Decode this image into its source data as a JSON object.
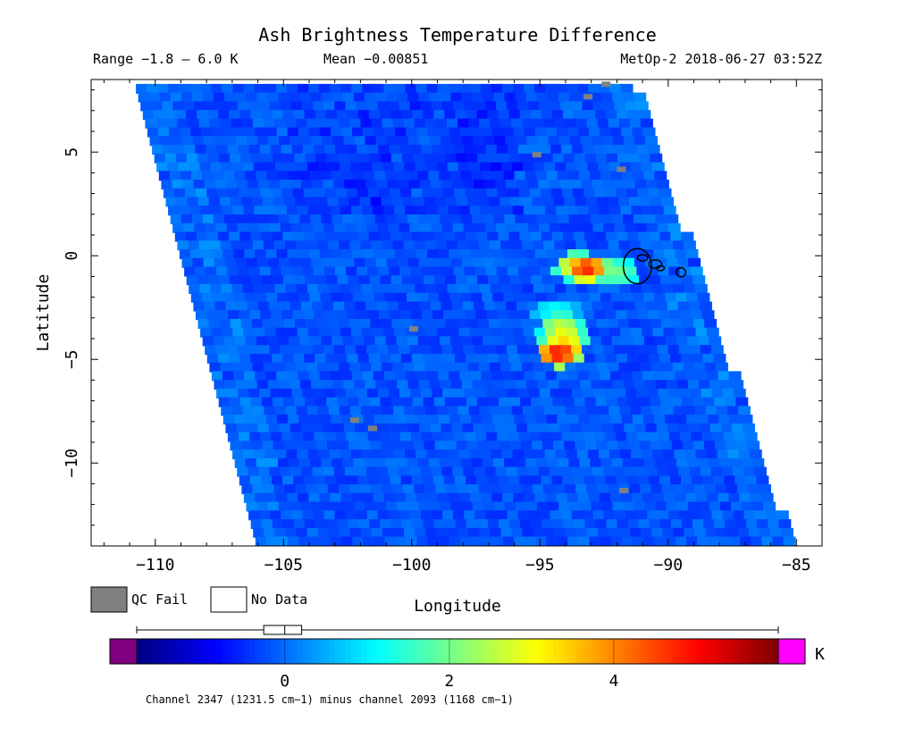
{
  "chart_data": {
    "type": "heatmap",
    "title": "Ash Brightness Temperature Difference",
    "header": {
      "range": "Range −1.8 – 6.0 K",
      "mean": "Mean −0.00851",
      "source": "MetOp-2 2018-06-27 03:52Z"
    },
    "xlabel": "Longitude",
    "ylabel": "Latitude",
    "xlim": [
      -112.5,
      -84.0
    ],
    "ylim": [
      -14.0,
      8.5
    ],
    "x_ticks": [
      -110,
      -105,
      -100,
      -95,
      -90,
      -85
    ],
    "x_tick_labels": [
      "−110",
      "−105",
      "−100",
      "−95",
      "−90",
      "−85"
    ],
    "y_ticks": [
      5,
      0,
      -5,
      -10
    ],
    "y_tick_labels": [
      "5",
      "0",
      "−5",
      "−10"
    ],
    "swath": {
      "left_edge": [
        [
          -110.8,
          8.5
        ],
        [
          -106.0,
          -14.0
        ]
      ],
      "right_edge": [
        [
          -91.5,
          8.5
        ],
        [
          -85.3,
          -14.0
        ]
      ]
    },
    "background_value": -0.2,
    "hotspots": [
      {
        "lon": -93.8,
        "lat": -0.3,
        "value": 3.2
      },
      {
        "lon": -93.4,
        "lat": -0.4,
        "value": 4.8
      },
      {
        "lon": -92.8,
        "lat": -0.5,
        "value": 2.2
      },
      {
        "lon": -92.2,
        "lat": -0.6,
        "value": 2.0
      },
      {
        "lon": -94.6,
        "lat": -2.5,
        "value": 1.2
      },
      {
        "lon": -94.4,
        "lat": -3.2,
        "value": 2.6
      },
      {
        "lon": -94.3,
        "lat": -3.8,
        "value": 3.4
      },
      {
        "lon": -94.3,
        "lat": -4.3,
        "value": 4.2
      },
      {
        "lon": -94.5,
        "lat": -4.5,
        "value": 5.0
      }
    ],
    "qc_fail_points": [
      {
        "lon": -93.3,
        "lat": 7.8
      },
      {
        "lon": -92.0,
        "lat": 4.3
      },
      {
        "lon": -95.3,
        "lat": 5.0
      },
      {
        "lon": -100.1,
        "lat": -3.4
      },
      {
        "lon": -102.4,
        "lat": -7.8
      },
      {
        "lon": -101.7,
        "lat": -8.2
      },
      {
        "lon": -91.9,
        "lat": -11.2
      },
      {
        "lon": -92.6,
        "lat": 8.4
      }
    ],
    "contour_label": "island outlines",
    "legend": [
      {
        "label": "QC Fail",
        "color": "#808080"
      },
      {
        "label": "No Data",
        "color": "#ffffff"
      }
    ],
    "colorbar": {
      "min": -1.8,
      "max": 6.0,
      "unit": "K",
      "ticks": [
        0,
        2,
        4
      ],
      "tick_labels": [
        "0",
        "2",
        "4"
      ],
      "under_color": "#800080",
      "over_color": "#ff00ff",
      "colors": [
        "#00007f",
        "#0000ff",
        "#007fff",
        "#00ffff",
        "#7fff7f",
        "#ffff00",
        "#ff7f00",
        "#ff0000",
        "#7f0000"
      ],
      "box_whisker": {
        "min": -1.8,
        "q1": -0.25,
        "median": 0.0,
        "q3": 0.2,
        "max": 6.0
      }
    },
    "caption": "Channel 2347 (1231.5 cm−1) minus channel 2093 (1168 cm−1)"
  }
}
